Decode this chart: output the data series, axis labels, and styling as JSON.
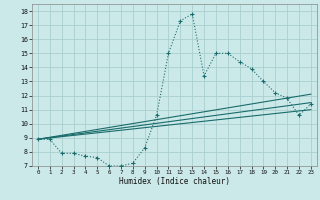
{
  "xlabel": "Humidex (Indice chaleur)",
  "bg_color": "#cce9e9",
  "grid_color": "#aacfcf",
  "line_color": "#1a6b6b",
  "xlim": [
    -0.5,
    23.5
  ],
  "ylim": [
    7,
    18.5
  ],
  "xticks": [
    0,
    1,
    2,
    3,
    4,
    5,
    6,
    7,
    8,
    9,
    10,
    11,
    12,
    13,
    14,
    15,
    16,
    17,
    18,
    19,
    20,
    21,
    22,
    23
  ],
  "yticks": [
    7,
    8,
    9,
    10,
    11,
    12,
    13,
    14,
    15,
    16,
    17,
    18
  ],
  "curve1_x": [
    0,
    1,
    2,
    3,
    4,
    5,
    6,
    7,
    8,
    9,
    10,
    11,
    12,
    13,
    14,
    15,
    16,
    17,
    18,
    19,
    20,
    21,
    22,
    23
  ],
  "curve1_y": [
    8.9,
    8.9,
    7.9,
    7.9,
    7.7,
    7.6,
    7.0,
    7.0,
    7.2,
    8.3,
    10.6,
    15.0,
    17.3,
    17.8,
    13.4,
    15.0,
    15.0,
    14.4,
    13.9,
    13.0,
    12.2,
    11.8,
    10.6,
    11.4
  ],
  "ref_lines": [
    {
      "x": [
        0,
        23
      ],
      "y": [
        8.9,
        12.1
      ]
    },
    {
      "x": [
        0,
        23
      ],
      "y": [
        8.9,
        11.5
      ]
    },
    {
      "x": [
        0,
        23
      ],
      "y": [
        8.9,
        11.0
      ]
    }
  ]
}
